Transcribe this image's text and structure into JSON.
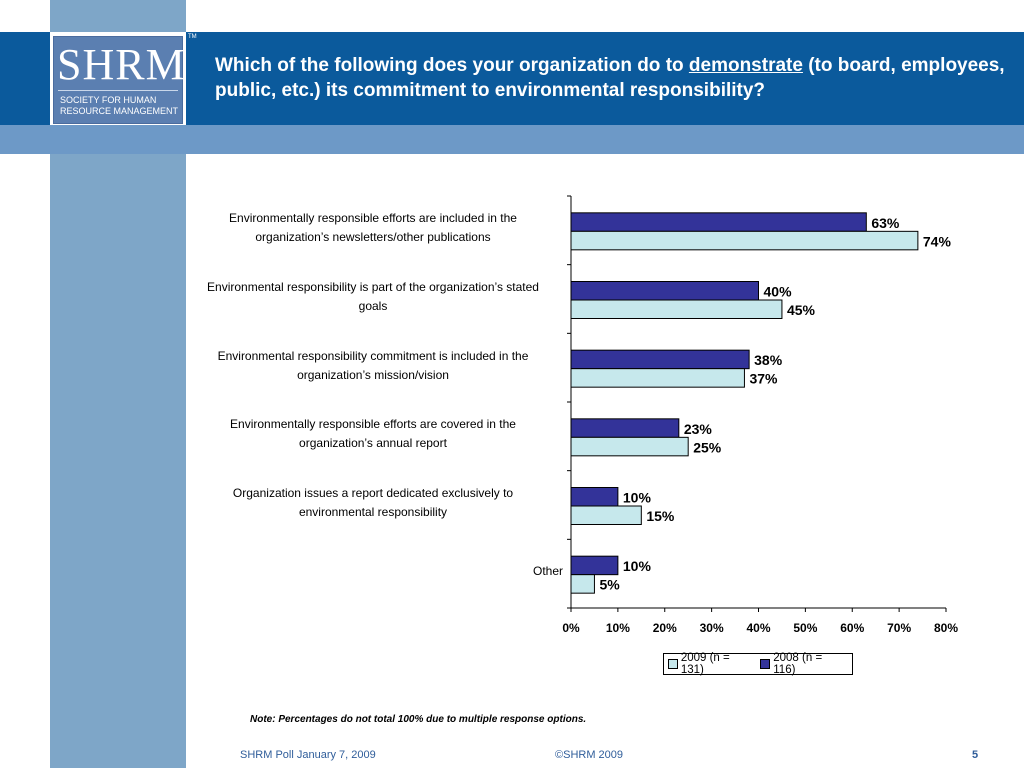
{
  "logo": {
    "word": "SHRM",
    "tm": "TM",
    "line1": "SOCIETY FOR HUMAN",
    "line2": "RESOURCE MANAGEMENT"
  },
  "title": {
    "part1": "Which of the following does your organization do to ",
    "underlined": "demonstrate",
    "part2": " (to board, employees, public, etc.) its commitment to environmental responsibility?"
  },
  "chart_data": {
    "type": "bar",
    "orientation": "horizontal",
    "categories": [
      {
        "line1": "Environmentally responsible efforts are included in the",
        "line2": "organization’s newsletters/other publications"
      },
      {
        "line1": "Environmental responsibility is part of the organization’s stated",
        "line2": "goals"
      },
      {
        "line1": "Environmental responsibility commitment is included in the",
        "line2": "organization’s mission/vision"
      },
      {
        "line1": "Environmentally responsible efforts are covered in the",
        "line2": "organization’s annual report"
      },
      {
        "line1": "Organization issues a report dedicated exclusively to",
        "line2": "environmental responsibility"
      },
      {
        "line1": "Other",
        "line2": ""
      }
    ],
    "series": [
      {
        "name": "2008 (n = 116)",
        "color": "#333399",
        "values": [
          63,
          40,
          38,
          23,
          10,
          10
        ],
        "labels": [
          "63%",
          "40%",
          "38%",
          "23%",
          "10%",
          "10%"
        ]
      },
      {
        "name": "2009 (n = 131)",
        "color": "#c6e8ec",
        "values": [
          74,
          45,
          37,
          25,
          15,
          5
        ],
        "labels": [
          "74%",
          "45%",
          "37%",
          "25%",
          "15%",
          "5%"
        ]
      }
    ],
    "xlim": [
      0,
      80
    ],
    "xticks": [
      0,
      10,
      20,
      30,
      40,
      50,
      60,
      70,
      80
    ],
    "xtick_labels": [
      "0%",
      "10%",
      "20%",
      "30%",
      "40%",
      "50%",
      "60%",
      "70%",
      "80%"
    ],
    "legend_order": [
      "2009 (n = 131)",
      "2008 (n = 116)"
    ],
    "legend_position": "bottom-right"
  },
  "note": "Note: Percentages do not total 100% due to multiple response options.",
  "footer": {
    "left": "SHRM Poll January 7, 2009",
    "center": "©SHRM 2009",
    "page": "5"
  }
}
